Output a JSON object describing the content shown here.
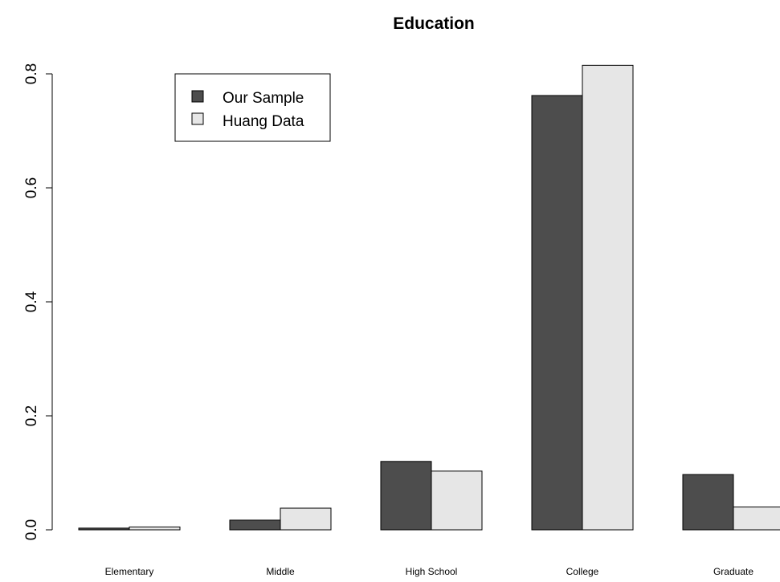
{
  "chart_data": {
    "type": "bar",
    "title": "Education",
    "xlabel": "",
    "ylabel": "",
    "categories": [
      "Elementary",
      "Middle",
      "High School",
      "College",
      "Graduate"
    ],
    "series": [
      {
        "name": "Our Sample",
        "color": "#4d4d4d",
        "values": [
          0.003,
          0.017,
          0.12,
          0.762,
          0.097
        ]
      },
      {
        "name": "Huang Data",
        "color": "#e6e6e6",
        "values": [
          0.005,
          0.038,
          0.103,
          0.815,
          0.04
        ]
      }
    ],
    "ylim": [
      0,
      0.8
    ],
    "yticks": [
      0.0,
      0.2,
      0.4,
      0.6,
      0.8
    ],
    "ytick_labels": [
      "0.0",
      "0.2",
      "0.4",
      "0.6",
      "0.8"
    ],
    "grid": false,
    "legend_position": "top-left"
  }
}
